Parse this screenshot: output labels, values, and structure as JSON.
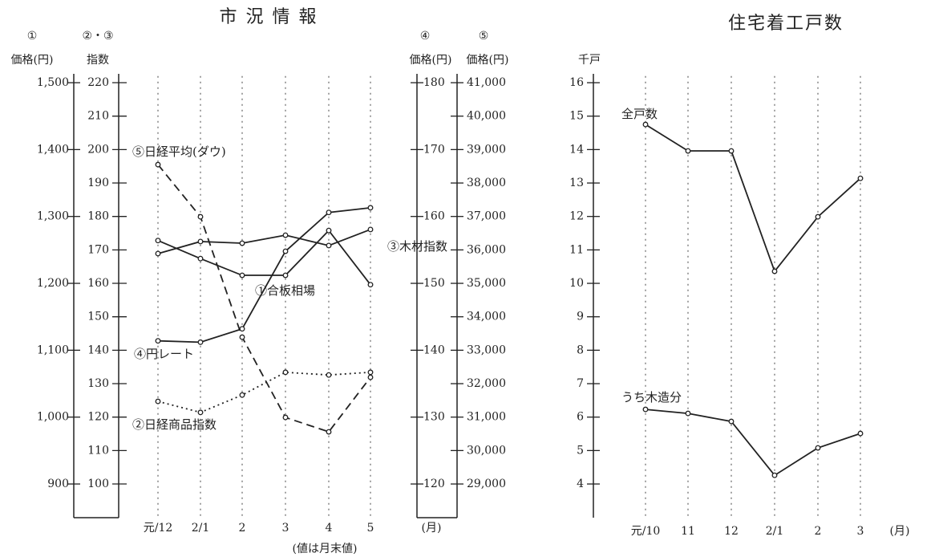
{
  "chart_data": [
    {
      "type": "line",
      "title": "市 況 情 報",
      "categories": [
        "元/12",
        "2/1",
        "2",
        "3",
        "4",
        "5"
      ],
      "x_unit": "(月)",
      "note": "(値は月末値)",
      "ylabel_mark": "①",
      "ylabel": "価格(円)",
      "y2label_mark": "②・③",
      "y2label": "指数",
      "y3label_mark": "④",
      "y3label": "価格(円)",
      "y4label_mark": "⑤",
      "y4label": "価格(円)",
      "ylim": [
        850,
        1510
      ],
      "yticks": [
        {
          "value": 900,
          "label": "900"
        },
        {
          "value": 1000,
          "label": "1,000"
        },
        {
          "value": 1100,
          "label": "1,100"
        },
        {
          "value": 1200,
          "label": "1,200"
        },
        {
          "value": 1300,
          "label": "1,300"
        },
        {
          "value": 1400,
          "label": "1,400"
        },
        {
          "value": 1500,
          "label": "1,500"
        }
      ],
      "y2lim": [
        90,
        222
      ],
      "y2ticks": [
        100,
        110,
        120,
        130,
        140,
        150,
        160,
        170,
        180,
        190,
        200,
        210,
        220
      ],
      "y3lim": [
        115,
        181
      ],
      "y3ticks": [
        120,
        130,
        140,
        150,
        160,
        170,
        180
      ],
      "y4lim": [
        28000,
        41200
      ],
      "y4ticks": [
        {
          "value": 29000,
          "label": "29,000"
        },
        {
          "value": 30000,
          "label": "30,000"
        },
        {
          "value": 31000,
          "label": "31,000"
        },
        {
          "value": 32000,
          "label": "32,000"
        },
        {
          "value": 33000,
          "label": "33,000"
        },
        {
          "value": 34000,
          "label": "34,000"
        },
        {
          "value": 35000,
          "label": "35,000"
        },
        {
          "value": 36000,
          "label": "36,000"
        },
        {
          "value": 37000,
          "label": "37,000"
        },
        {
          "value": 38000,
          "label": "38,000"
        },
        {
          "value": 39000,
          "label": "39,000"
        },
        {
          "value": 40000,
          "label": "40,000"
        },
        {
          "value": 41000,
          "label": "41,000"
        }
      ],
      "series": [
        {
          "name": "①合板相場",
          "axis": "y",
          "color": "#222222",
          "style": "solid",
          "values": [
            1264,
            1237,
            1212,
            1212,
            1279,
            1198
          ]
        },
        {
          "name": "②日経商品指数",
          "axis": "y2",
          "color": "#222222",
          "style": "dotted",
          "values": [
            124.7,
            121.4,
            126.6,
            133.4,
            132.6,
            133.4
          ]
        },
        {
          "name": "③木材指数",
          "axis": "y2",
          "color": "#222222",
          "style": "solid",
          "values": [
            168.9,
            172.5,
            172,
            174.4,
            171.3,
            176.1
          ]
        },
        {
          "name": "④円レート",
          "axis": "y3",
          "color": "#222222",
          "style": "solid",
          "values": [
            141.4,
            141.2,
            143.2,
            154.8,
            160.6,
            161.3
          ]
        },
        {
          "name": "⑤日経平均(ダウ)",
          "axis": "y4",
          "color": "#222222",
          "style": "dashed",
          "values": [
            38550,
            36990,
            33390,
            30990,
            30560,
            32190
          ]
        }
      ]
    },
    {
      "type": "line",
      "title": "住宅着工戸数",
      "categories": [
        "元/10",
        "11",
        "12",
        "2/1",
        "2",
        "3"
      ],
      "x_unit": "(月)",
      "ylabel": "千戸",
      "ylim": [
        3,
        16.2
      ],
      "yticks": [
        4,
        5,
        6,
        7,
        8,
        9,
        10,
        11,
        12,
        13,
        14,
        15,
        16
      ],
      "series": [
        {
          "name": "全戸数",
          "axis": "y",
          "color": "#222222",
          "style": "solid",
          "values": [
            14.75,
            13.96,
            13.96,
            10.36,
            11.99,
            13.14
          ]
        },
        {
          "name": "うち木造分",
          "axis": "y",
          "color": "#222222",
          "style": "solid",
          "values": [
            6.23,
            6.11,
            5.87,
            4.26,
            5.08,
            5.51
          ]
        }
      ]
    }
  ]
}
